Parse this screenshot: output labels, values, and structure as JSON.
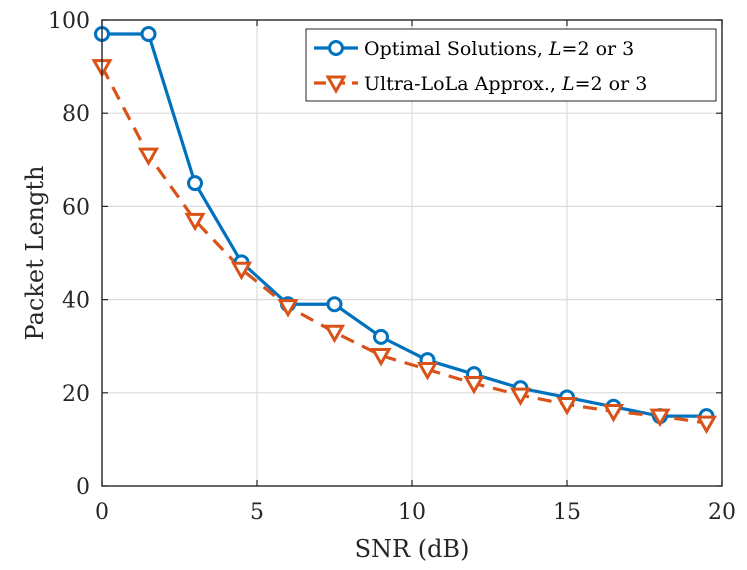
{
  "chart_data": {
    "type": "line",
    "title": "",
    "xlabel": "SNR (dB)",
    "ylabel": "Packet Length",
    "xlim": [
      0,
      20
    ],
    "ylim": [
      0,
      100
    ],
    "xticks": [
      0,
      5,
      10,
      15,
      20
    ],
    "yticks": [
      0,
      20,
      40,
      60,
      80,
      100
    ],
    "grid": true,
    "legend_position": "top-right",
    "series": [
      {
        "name": "Optimal Solutions, L=2 or 3",
        "legend_prefix": "Optimal Solutions, ",
        "legend_var": "L",
        "legend_suffix": "=2 or 3",
        "color": "#0072BD",
        "line_style": "solid",
        "marker": "circle",
        "x": [
          0,
          1.5,
          3,
          4.5,
          6,
          7.5,
          9,
          10.5,
          12,
          13.5,
          15,
          16.5,
          18,
          19.5
        ],
        "y": [
          97,
          97,
          65,
          48,
          39,
          39,
          32,
          27,
          24,
          21,
          19,
          17,
          15,
          15
        ]
      },
      {
        "name": "Ultra-LoLa Approx., L=2 or 3",
        "legend_prefix": "Ultra-LoLa Approx., ",
        "legend_var": "L",
        "legend_suffix": "=2 or 3",
        "color": "#D95319",
        "line_style": "dashed",
        "marker": "triangle-down",
        "x": [
          0,
          1.5,
          3,
          4.5,
          6,
          7.5,
          9,
          10.5,
          12,
          13.5,
          15,
          16.5,
          18,
          19.5
        ],
        "y": [
          90,
          71,
          57,
          46.5,
          38.5,
          33,
          28,
          25,
          22,
          19.5,
          17.5,
          16,
          15,
          13.5
        ]
      }
    ]
  }
}
